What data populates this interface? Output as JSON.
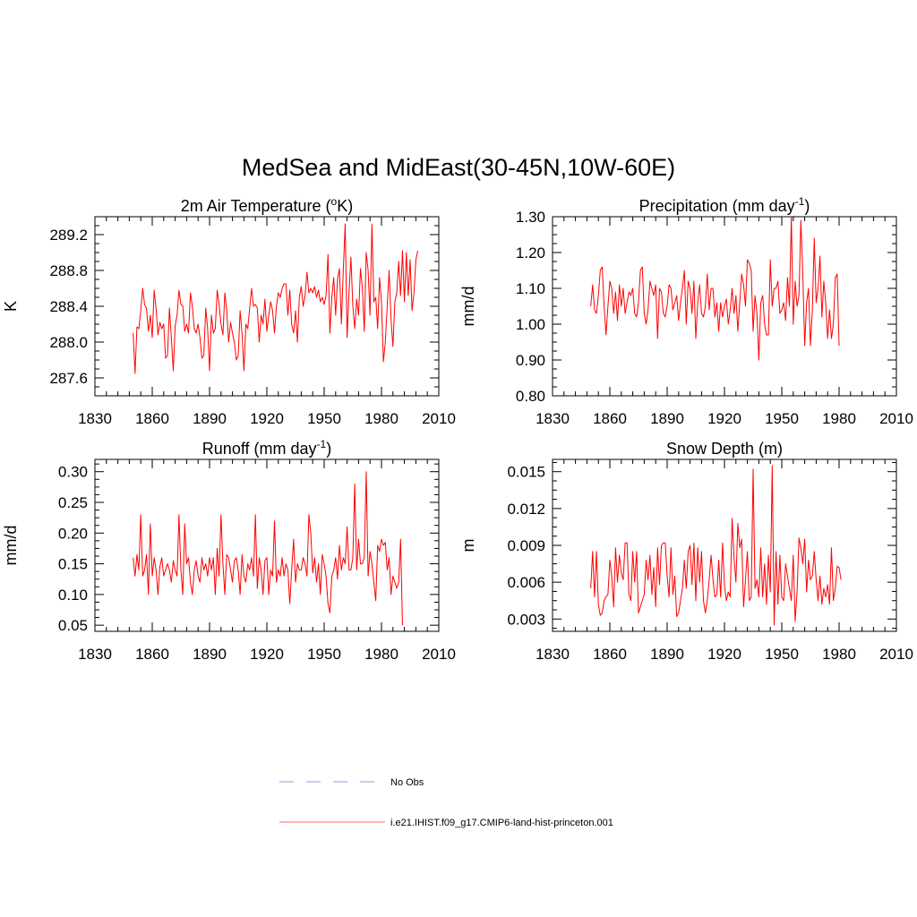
{
  "main_title": "MedSea and MidEast(30-45N,10W-60E)",
  "legend": {
    "obs_label": "No Obs",
    "obs_color": "#aaaaee",
    "model_label": "i.e21.IHIST.f09_g17.CMIP6-land-hist-princeton.001",
    "model_color": "#ff8888"
  },
  "chart_data": [
    {
      "type": "line",
      "title_main": "2m Air Temperature (",
      "title_sup": "o",
      "title_end": "K)",
      "ylabel": "K",
      "xlim": [
        1830,
        2010
      ],
      "ylim": [
        287.4,
        289.4
      ],
      "xticks": [
        1830,
        1860,
        1890,
        1920,
        1950,
        1980,
        2010
      ],
      "yticks": [
        287.6,
        288.0,
        288.4,
        288.8,
        289.2
      ],
      "ytick_labels": [
        "287.6",
        "288.0",
        "288.4",
        "288.8",
        "289.2"
      ],
      "x_start": 1850,
      "series": [
        {
          "color": "#ff0000",
          "values": [
            288.1,
            287.65,
            288.17,
            288.15,
            288.35,
            288.6,
            288.42,
            288.38,
            288.12,
            288.3,
            288.05,
            288.58,
            288.38,
            288.08,
            288.22,
            288.15,
            288.2,
            287.82,
            287.85,
            288.38,
            288.05,
            287.68,
            288.18,
            288.3,
            288.58,
            288.42,
            288.4,
            288.12,
            288.2,
            288.1,
            288.55,
            288.4,
            288.15,
            288.1,
            288.2,
            288.05,
            287.82,
            287.85,
            288.38,
            288.15,
            287.68,
            288.3,
            288.1,
            288.15,
            288.58,
            288.42,
            288.2,
            288.08,
            288.55,
            288.35,
            288.0,
            288.22,
            288.1,
            288.0,
            287.8,
            287.85,
            288.35,
            288.1,
            287.68,
            288.2,
            288.15,
            288.38,
            288.6,
            288.4,
            288.42,
            288.38,
            288.0,
            288.3,
            288.2,
            288.48,
            288.12,
            288.3,
            288.45,
            288.35,
            288.1,
            288.4,
            288.55,
            288.5,
            288.6,
            288.65,
            288.65,
            288.3,
            288.58,
            288.2,
            288.1,
            288.35,
            288.0,
            288.5,
            288.62,
            288.4,
            288.52,
            288.78,
            288.55,
            288.6,
            288.55,
            288.62,
            288.5,
            288.58,
            288.45,
            288.5,
            288.42,
            288.52,
            288.98,
            288.1,
            288.5,
            288.72,
            288.3,
            288.7,
            288.82,
            288.2,
            288.8,
            289.32,
            288.05,
            288.55,
            288.95,
            288.4,
            288.15,
            288.48,
            288.3,
            288.82,
            288.6,
            288.12,
            289.0,
            288.8,
            288.3,
            289.32,
            288.45,
            288.5,
            288.15,
            288.72,
            288.45,
            287.78,
            288.0,
            288.4,
            288.8,
            288.25,
            287.95,
            288.45,
            288.55,
            288.9,
            288.52,
            289.02,
            288.45,
            289.0,
            288.52,
            288.92,
            288.35,
            288.55,
            288.92,
            289.02
          ]
        }
      ]
    },
    {
      "type": "line",
      "title_main": "Precipitation (mm day",
      "title_sup": "-1",
      "title_end": ")",
      "ylabel": "mm/d",
      "xlim": [
        1830,
        2010
      ],
      "ylim": [
        0.8,
        1.3
      ],
      "xticks": [
        1830,
        1860,
        1890,
        1920,
        1950,
        1980,
        2010
      ],
      "yticks": [
        0.8,
        0.9,
        1.0,
        1.1,
        1.2,
        1.3
      ],
      "ytick_labels": [
        "0.80",
        "0.90",
        "1.00",
        "1.10",
        "1.20",
        "1.30"
      ],
      "x_start": 1850,
      "series": [
        {
          "color": "#ff0000",
          "values": [
            1.05,
            1.11,
            1.04,
            1.03,
            1.08,
            1.15,
            1.16,
            1.05,
            0.97,
            1.05,
            1.12,
            1.1,
            1.03,
            1.09,
            1.01,
            1.11,
            1.05,
            1.1,
            1.03,
            1.06,
            1.09,
            1.08,
            1.1,
            1.03,
            1.02,
            1.06,
            1.15,
            1.16,
            1.03,
            1.0,
            1.04,
            1.12,
            1.1,
            1.08,
            1.11,
            0.96,
            1.1,
            1.09,
            1.03,
            1.02,
            1.05,
            1.11,
            1.1,
            1.04,
            1.06,
            1.08,
            1.01,
            1.06,
            1.1,
            1.15,
            1.0,
            1.12,
            1.1,
            1.03,
            1.12,
            0.96,
            1.06,
            1.11,
            1.03,
            1.02,
            1.05,
            1.14,
            1.04,
            1.1,
            1.1,
            1.02,
            1.06,
            0.98,
            1.06,
            1.02,
            1.05,
            1.07,
            1.0,
            1.04,
            1.1,
            1.03,
            1.08,
            0.98,
            1.06,
            1.14,
            1.11,
            1.05,
            1.18,
            1.17,
            1.15,
            0.98,
            1.08,
            1.03,
            0.9,
            1.06,
            1.08,
            1.0,
            0.97,
            0.97,
            1.18,
            1.05,
            1.1,
            1.1,
            1.12,
            1.03,
            1.04,
            1.06,
            1.01,
            1.13,
            1.05,
            1.3,
            1.0,
            1.12,
            1.05,
            1.08,
            1.29,
            1.14,
            0.94,
            1.06,
            1.1,
            0.94,
            1.04,
            1.24,
            1.06,
            1.1,
            1.19,
            1.02,
            1.12,
            1.06,
            0.96,
            1.04,
            0.96,
            1.0,
            1.13,
            1.14,
            0.94
          ]
        }
      ]
    },
    {
      "type": "line",
      "title_main": "Runoff (mm day",
      "title_sup": "-1",
      "title_end": ")",
      "ylabel": "mm/d",
      "xlim": [
        1830,
        2010
      ],
      "ylim": [
        0.04,
        0.32
      ],
      "xticks": [
        1830,
        1860,
        1890,
        1920,
        1950,
        1980,
        2010
      ],
      "yticks": [
        0.05,
        0.1,
        0.15,
        0.2,
        0.25,
        0.3
      ],
      "ytick_labels": [
        "0.05",
        "0.10",
        "0.15",
        "0.20",
        "0.25",
        "0.30"
      ],
      "x_start": 1850,
      "series": [
        {
          "color": "#ff0000",
          "values": [
            0.16,
            0.13,
            0.165,
            0.14,
            0.23,
            0.13,
            0.14,
            0.165,
            0.1,
            0.215,
            0.13,
            0.16,
            0.14,
            0.1,
            0.145,
            0.16,
            0.13,
            0.14,
            0.15,
            0.14,
            0.12,
            0.155,
            0.14,
            0.13,
            0.23,
            0.14,
            0.1,
            0.215,
            0.15,
            0.16,
            0.12,
            0.1,
            0.14,
            0.155,
            0.13,
            0.12,
            0.16,
            0.14,
            0.15,
            0.13,
            0.16,
            0.14,
            0.16,
            0.1,
            0.175,
            0.13,
            0.23,
            0.15,
            0.1,
            0.165,
            0.16,
            0.14,
            0.12,
            0.155,
            0.16,
            0.14,
            0.1,
            0.165,
            0.13,
            0.12,
            0.15,
            0.14,
            0.16,
            0.13,
            0.23,
            0.11,
            0.16,
            0.14,
            0.1,
            0.155,
            0.16,
            0.1,
            0.14,
            0.13,
            0.22,
            0.12,
            0.14,
            0.13,
            0.16,
            0.13,
            0.15,
            0.14,
            0.085,
            0.14,
            0.19,
            0.12,
            0.15,
            0.14,
            0.14,
            0.16,
            0.15,
            0.13,
            0.23,
            0.2,
            0.135,
            0.16,
            0.12,
            0.15,
            0.1,
            0.165,
            0.15,
            0.13,
            0.085,
            0.07,
            0.13,
            0.14,
            0.16,
            0.125,
            0.18,
            0.14,
            0.16,
            0.15,
            0.21,
            0.14,
            0.14,
            0.16,
            0.28,
            0.14,
            0.19,
            0.15,
            0.15,
            0.16,
            0.3,
            0.13,
            0.17,
            0.15,
            0.12,
            0.09,
            0.18,
            0.17,
            0.19,
            0.18,
            0.185,
            0.14,
            0.16,
            0.1,
            0.13,
            0.12,
            0.11,
            0.12,
            0.19,
            0.05
          ]
        }
      ]
    },
    {
      "type": "line",
      "title_main": "Snow Depth (m)",
      "title_sup": "",
      "title_end": "",
      "ylabel": "m",
      "xlim": [
        1830,
        2010
      ],
      "ylim": [
        0.002,
        0.016
      ],
      "xticks": [
        1830,
        1860,
        1890,
        1920,
        1950,
        1980,
        2010
      ],
      "yticks": [
        0.003,
        0.006,
        0.009,
        0.012,
        0.015
      ],
      "ytick_labels": [
        "0.003",
        "0.006",
        "0.009",
        "0.012",
        "0.015"
      ],
      "x_start": 1850,
      "series": [
        {
          "color": "#ff0000",
          "values": [
            0.0055,
            0.0085,
            0.0048,
            0.0085,
            0.0042,
            0.0033,
            0.0035,
            0.0045,
            0.0048,
            0.005,
            0.0078,
            0.0065,
            0.004,
            0.0088,
            0.006,
            0.0082,
            0.0068,
            0.0062,
            0.0092,
            0.0092,
            0.005,
            0.0045,
            0.0085,
            0.006,
            0.0085,
            0.0035,
            0.004,
            0.0045,
            0.005,
            0.0078,
            0.0062,
            0.0082,
            0.005,
            0.0072,
            0.004,
            0.0088,
            0.0058,
            0.009,
            0.0092,
            0.0092,
            0.0065,
            0.0048,
            0.0088,
            0.005,
            0.0065,
            0.0032,
            0.0035,
            0.0045,
            0.0055,
            0.0078,
            0.0055,
            0.0085,
            0.009,
            0.0058,
            0.0092,
            0.0045,
            0.0088,
            0.006,
            0.0085,
            0.0045,
            0.0035,
            0.0045,
            0.0062,
            0.0082,
            0.0062,
            0.0048,
            0.005,
            0.0078,
            0.0048,
            0.0092,
            0.0058,
            0.0045,
            0.0052,
            0.0048,
            0.0112,
            0.008,
            0.006,
            0.0108,
            0.0088,
            0.0095,
            0.004,
            0.0062,
            0.0085,
            0.0045,
            0.0048,
            0.0152,
            0.0055,
            0.0062,
            0.0048,
            0.0088,
            0.0048,
            0.0075,
            0.0042,
            0.0082,
            0.0052,
            0.0155,
            0.0025,
            0.0085,
            0.0042,
            0.0082,
            0.0048,
            0.0045,
            0.0075,
            0.0065,
            0.0055,
            0.0045,
            0.0082,
            0.0028,
            0.0052,
            0.0096,
            0.0088,
            0.0075,
            0.0095,
            0.0052,
            0.0078,
            0.0062,
            0.0065,
            0.0085,
            0.0062,
            0.0045,
            0.0065,
            0.0042,
            0.0055,
            0.0048,
            0.0058,
            0.0042,
            0.0088,
            0.0045,
            0.0055,
            0.0073,
            0.0072,
            0.0062
          ]
        }
      ]
    }
  ]
}
